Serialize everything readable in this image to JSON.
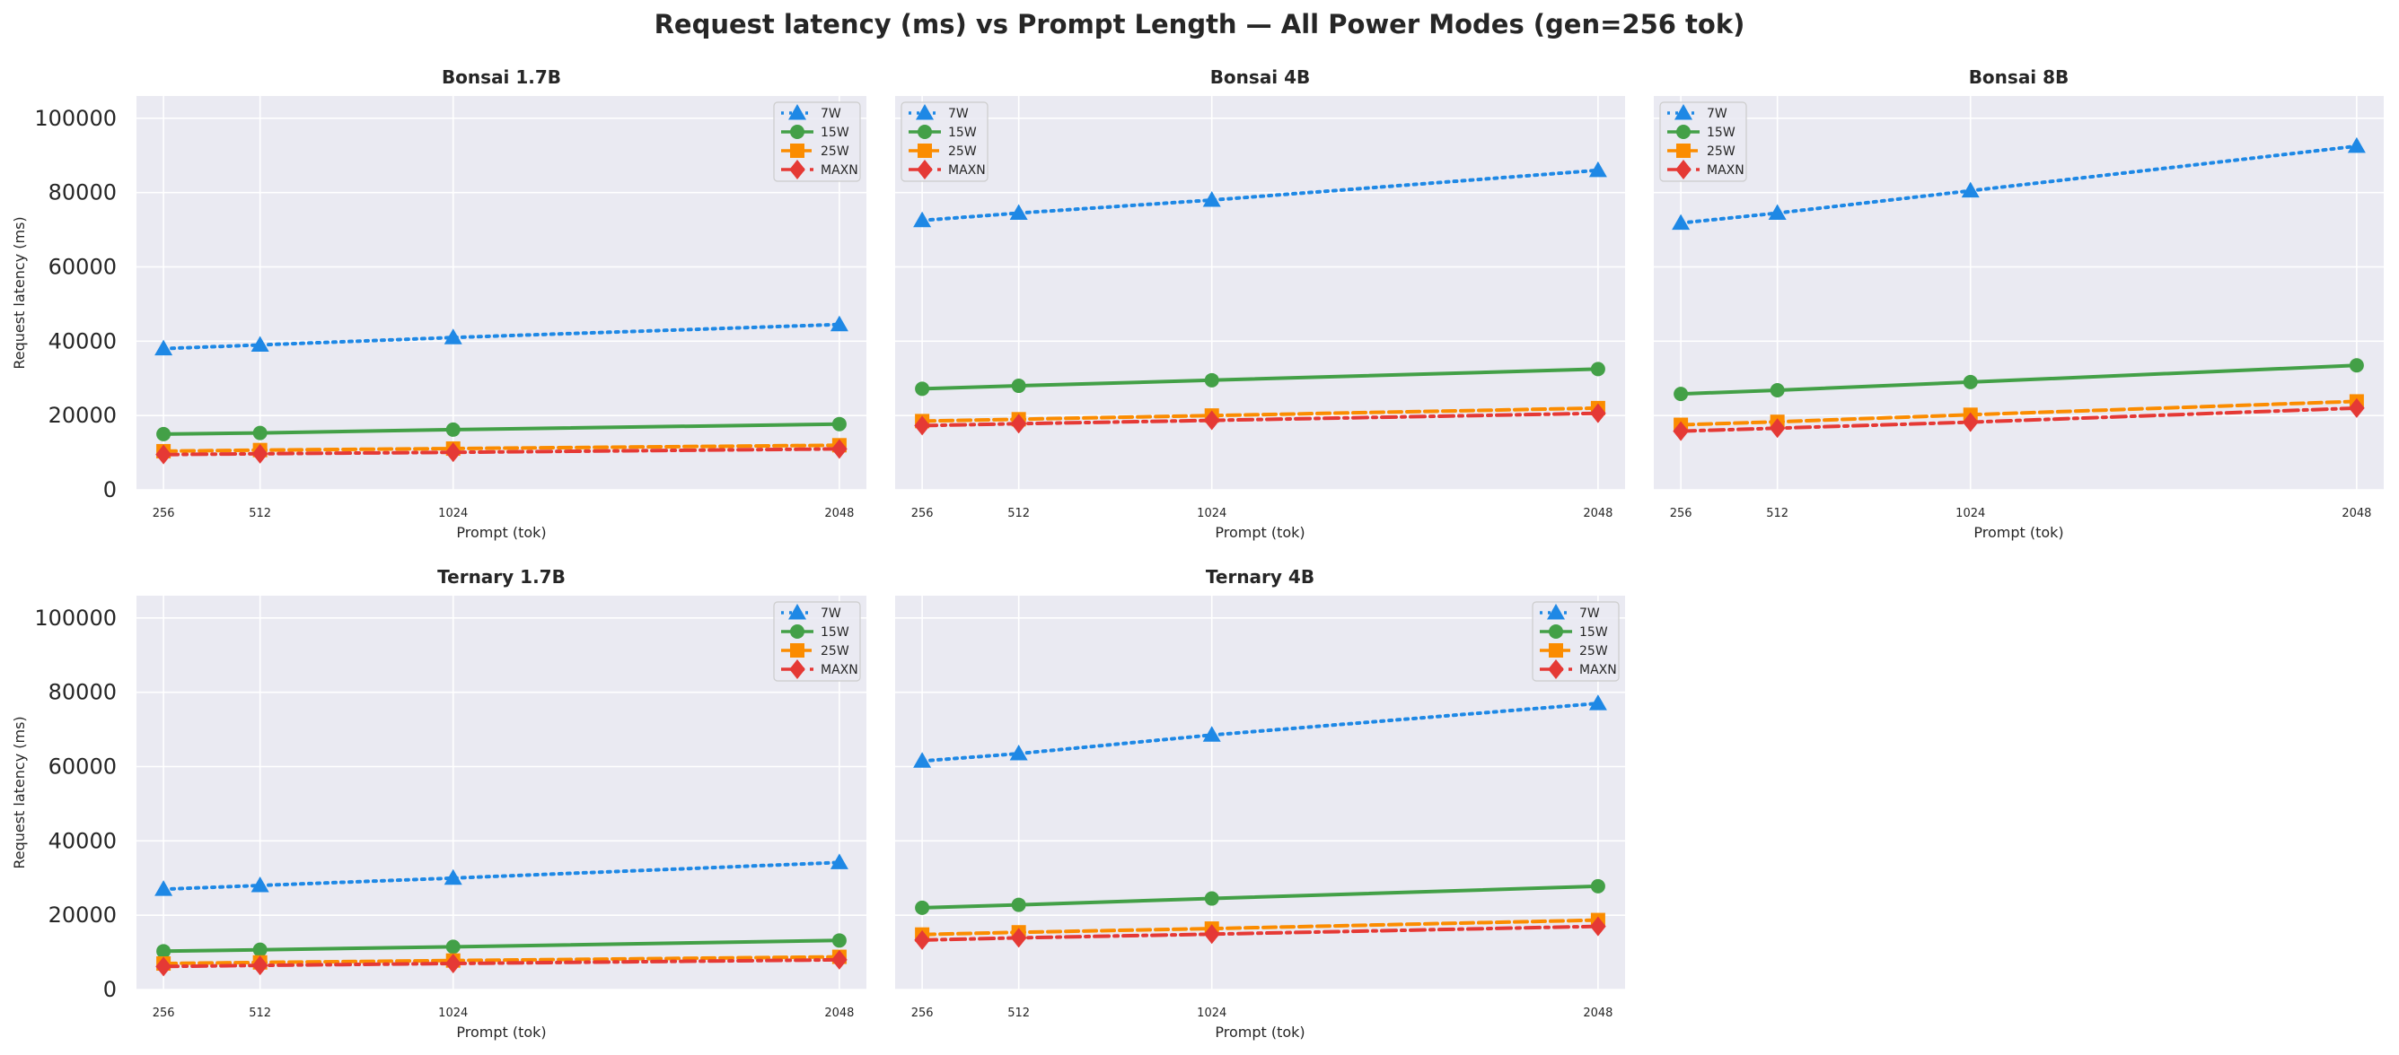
{
  "figure": {
    "title": "Request latency (ms) vs Prompt Length — All Power Modes (gen=256 tok)",
    "background": "#ffffff",
    "panel_background": "#eaeaf2",
    "grid_color": "#ffffff"
  },
  "chart_data": [
    {
      "type": "line",
      "title": "Bonsai 1.7B",
      "xlabel": "Prompt (tok)",
      "ylabel": "Request latency (ms)",
      "x": [
        256,
        512,
        1024,
        2048
      ],
      "xticks": [
        "256",
        "512",
        "1024",
        "2048"
      ],
      "ylim": [
        0,
        106000
      ],
      "yticks": [
        0,
        20000,
        40000,
        60000,
        80000,
        100000
      ],
      "grid": true,
      "legend": "top-right",
      "series": [
        {
          "name": "7W",
          "values": [
            38000,
            39000,
            41000,
            44500
          ],
          "color": "#1e88e5",
          "linestyle": "dotted",
          "marker": "triangle"
        },
        {
          "name": "15W",
          "values": [
            15000,
            15300,
            16200,
            17700
          ],
          "color": "#43a047",
          "linestyle": "solid",
          "marker": "circle"
        },
        {
          "name": "25W",
          "values": [
            10400,
            10700,
            11100,
            12000
          ],
          "color": "#fb8c00",
          "linestyle": "dashed",
          "marker": "square"
        },
        {
          "name": "MAXN",
          "values": [
            9500,
            9700,
            10100,
            11000
          ],
          "color": "#e53935",
          "linestyle": "dashdot",
          "marker": "diamond"
        }
      ]
    },
    {
      "type": "line",
      "title": "Bonsai 4B",
      "xlabel": "Prompt (tok)",
      "ylabel": "",
      "x": [
        256,
        512,
        1024,
        2048
      ],
      "xticks": [
        "256",
        "512",
        "1024",
        "2048"
      ],
      "ylim": [
        0,
        106000
      ],
      "yticks": [
        0,
        20000,
        40000,
        60000,
        80000,
        100000
      ],
      "grid": true,
      "legend": "top-left",
      "series": [
        {
          "name": "7W",
          "values": [
            72500,
            74500,
            78000,
            86000
          ],
          "color": "#1e88e5",
          "linestyle": "dotted",
          "marker": "triangle"
        },
        {
          "name": "15W",
          "values": [
            27200,
            28000,
            29500,
            32500
          ],
          "color": "#43a047",
          "linestyle": "solid",
          "marker": "circle"
        },
        {
          "name": "25W",
          "values": [
            18500,
            19000,
            20000,
            22000
          ],
          "color": "#fb8c00",
          "linestyle": "dashed",
          "marker": "square"
        },
        {
          "name": "MAXN",
          "values": [
            17300,
            17800,
            18700,
            20600
          ],
          "color": "#e53935",
          "linestyle": "dashdot",
          "marker": "diamond"
        }
      ]
    },
    {
      "type": "line",
      "title": "Bonsai 8B",
      "xlabel": "Prompt (tok)",
      "ylabel": "",
      "x": [
        256,
        512,
        1024,
        2048
      ],
      "xticks": [
        "256",
        "512",
        "1024",
        "2048"
      ],
      "ylim": [
        0,
        106000
      ],
      "yticks": [
        0,
        20000,
        40000,
        60000,
        80000,
        100000
      ],
      "grid": true,
      "legend": "top-left",
      "series": [
        {
          "name": "7W",
          "values": [
            71800,
            74500,
            80500,
            92500
          ],
          "color": "#1e88e5",
          "linestyle": "dotted",
          "marker": "triangle"
        },
        {
          "name": "15W",
          "values": [
            25800,
            26800,
            29000,
            33500
          ],
          "color": "#43a047",
          "linestyle": "solid",
          "marker": "circle"
        },
        {
          "name": "25W",
          "values": [
            17500,
            18300,
            20200,
            23800
          ],
          "color": "#fb8c00",
          "linestyle": "dashed",
          "marker": "square"
        },
        {
          "name": "MAXN",
          "values": [
            15800,
            16600,
            18200,
            22000
          ],
          "color": "#e53935",
          "linestyle": "dashdot",
          "marker": "diamond"
        }
      ]
    },
    {
      "type": "line",
      "title": "Ternary 1.7B",
      "xlabel": "Prompt (tok)",
      "ylabel": "Request latency (ms)",
      "x": [
        256,
        512,
        1024,
        2048
      ],
      "xticks": [
        "256",
        "512",
        "1024",
        "2048"
      ],
      "ylim": [
        0,
        106000
      ],
      "yticks": [
        0,
        20000,
        40000,
        60000,
        80000,
        100000
      ],
      "grid": true,
      "legend": "top-right",
      "series": [
        {
          "name": "7W",
          "values": [
            27000,
            28000,
            30000,
            34200
          ],
          "color": "#1e88e5",
          "linestyle": "dotted",
          "marker": "triangle"
        },
        {
          "name": "15W",
          "values": [
            10300,
            10700,
            11500,
            13200
          ],
          "color": "#43a047",
          "linestyle": "solid",
          "marker": "circle"
        },
        {
          "name": "25W",
          "values": [
            7000,
            7300,
            7800,
            8800
          ],
          "color": "#fb8c00",
          "linestyle": "dashed",
          "marker": "square"
        },
        {
          "name": "MAXN",
          "values": [
            6200,
            6500,
            7000,
            8000
          ],
          "color": "#e53935",
          "linestyle": "dashdot",
          "marker": "diamond"
        }
      ]
    },
    {
      "type": "line",
      "title": "Ternary 4B",
      "xlabel": "Prompt (tok)",
      "ylabel": "",
      "x": [
        256,
        512,
        1024,
        2048
      ],
      "xticks": [
        "256",
        "512",
        "1024",
        "2048"
      ],
      "ylim": [
        0,
        106000
      ],
      "yticks": [
        0,
        20000,
        40000,
        60000,
        80000,
        100000
      ],
      "grid": true,
      "legend": "top-right",
      "series": [
        {
          "name": "7W",
          "values": [
            61500,
            63500,
            68500,
            77000
          ],
          "color": "#1e88e5",
          "linestyle": "dotted",
          "marker": "triangle"
        },
        {
          "name": "15W",
          "values": [
            22000,
            22800,
            24500,
            27800
          ],
          "color": "#43a047",
          "linestyle": "solid",
          "marker": "circle"
        },
        {
          "name": "25W",
          "values": [
            14800,
            15400,
            16400,
            18700
          ],
          "color": "#fb8c00",
          "linestyle": "dashed",
          "marker": "square"
        },
        {
          "name": "MAXN",
          "values": [
            13300,
            13900,
            14900,
            17000
          ],
          "color": "#e53935",
          "linestyle": "dashdot",
          "marker": "diamond"
        }
      ]
    }
  ]
}
